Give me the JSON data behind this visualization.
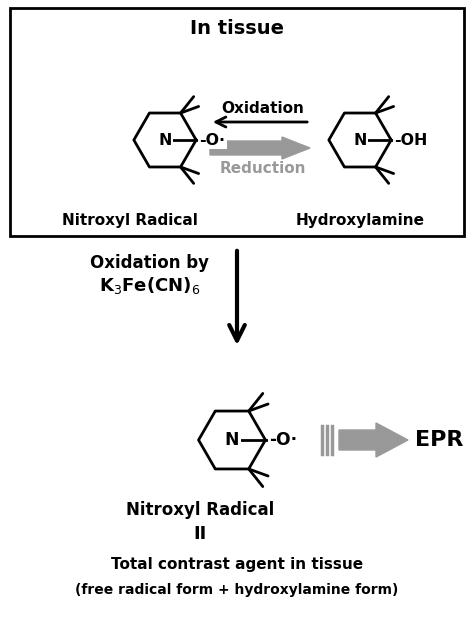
{
  "bg_color": "#ffffff",
  "box_color": "#000000",
  "gray_color": "#999999",
  "dark_color": "#000000",
  "title_in_tissue": "In tissue",
  "label_nitroxyl": "Nitroxyl Radical",
  "label_hydroxylamine": "Hydroxylamine",
  "label_oxidation_top": "Oxidation",
  "label_reduction_top": "Reduction",
  "label_oxidation_by": "Oxidation by",
  "label_k3fe": "K$_3$Fe(CN)$_6$",
  "label_nitroxyl2": "Nitroxyl Radical",
  "label_equals": "II",
  "label_total": "Total contrast agent in tissue",
  "label_free": "(free radical form + hydroxylamine form)",
  "label_epr": "EPR",
  "figsize": [
    4.74,
    6.44
  ],
  "dpi": 100
}
